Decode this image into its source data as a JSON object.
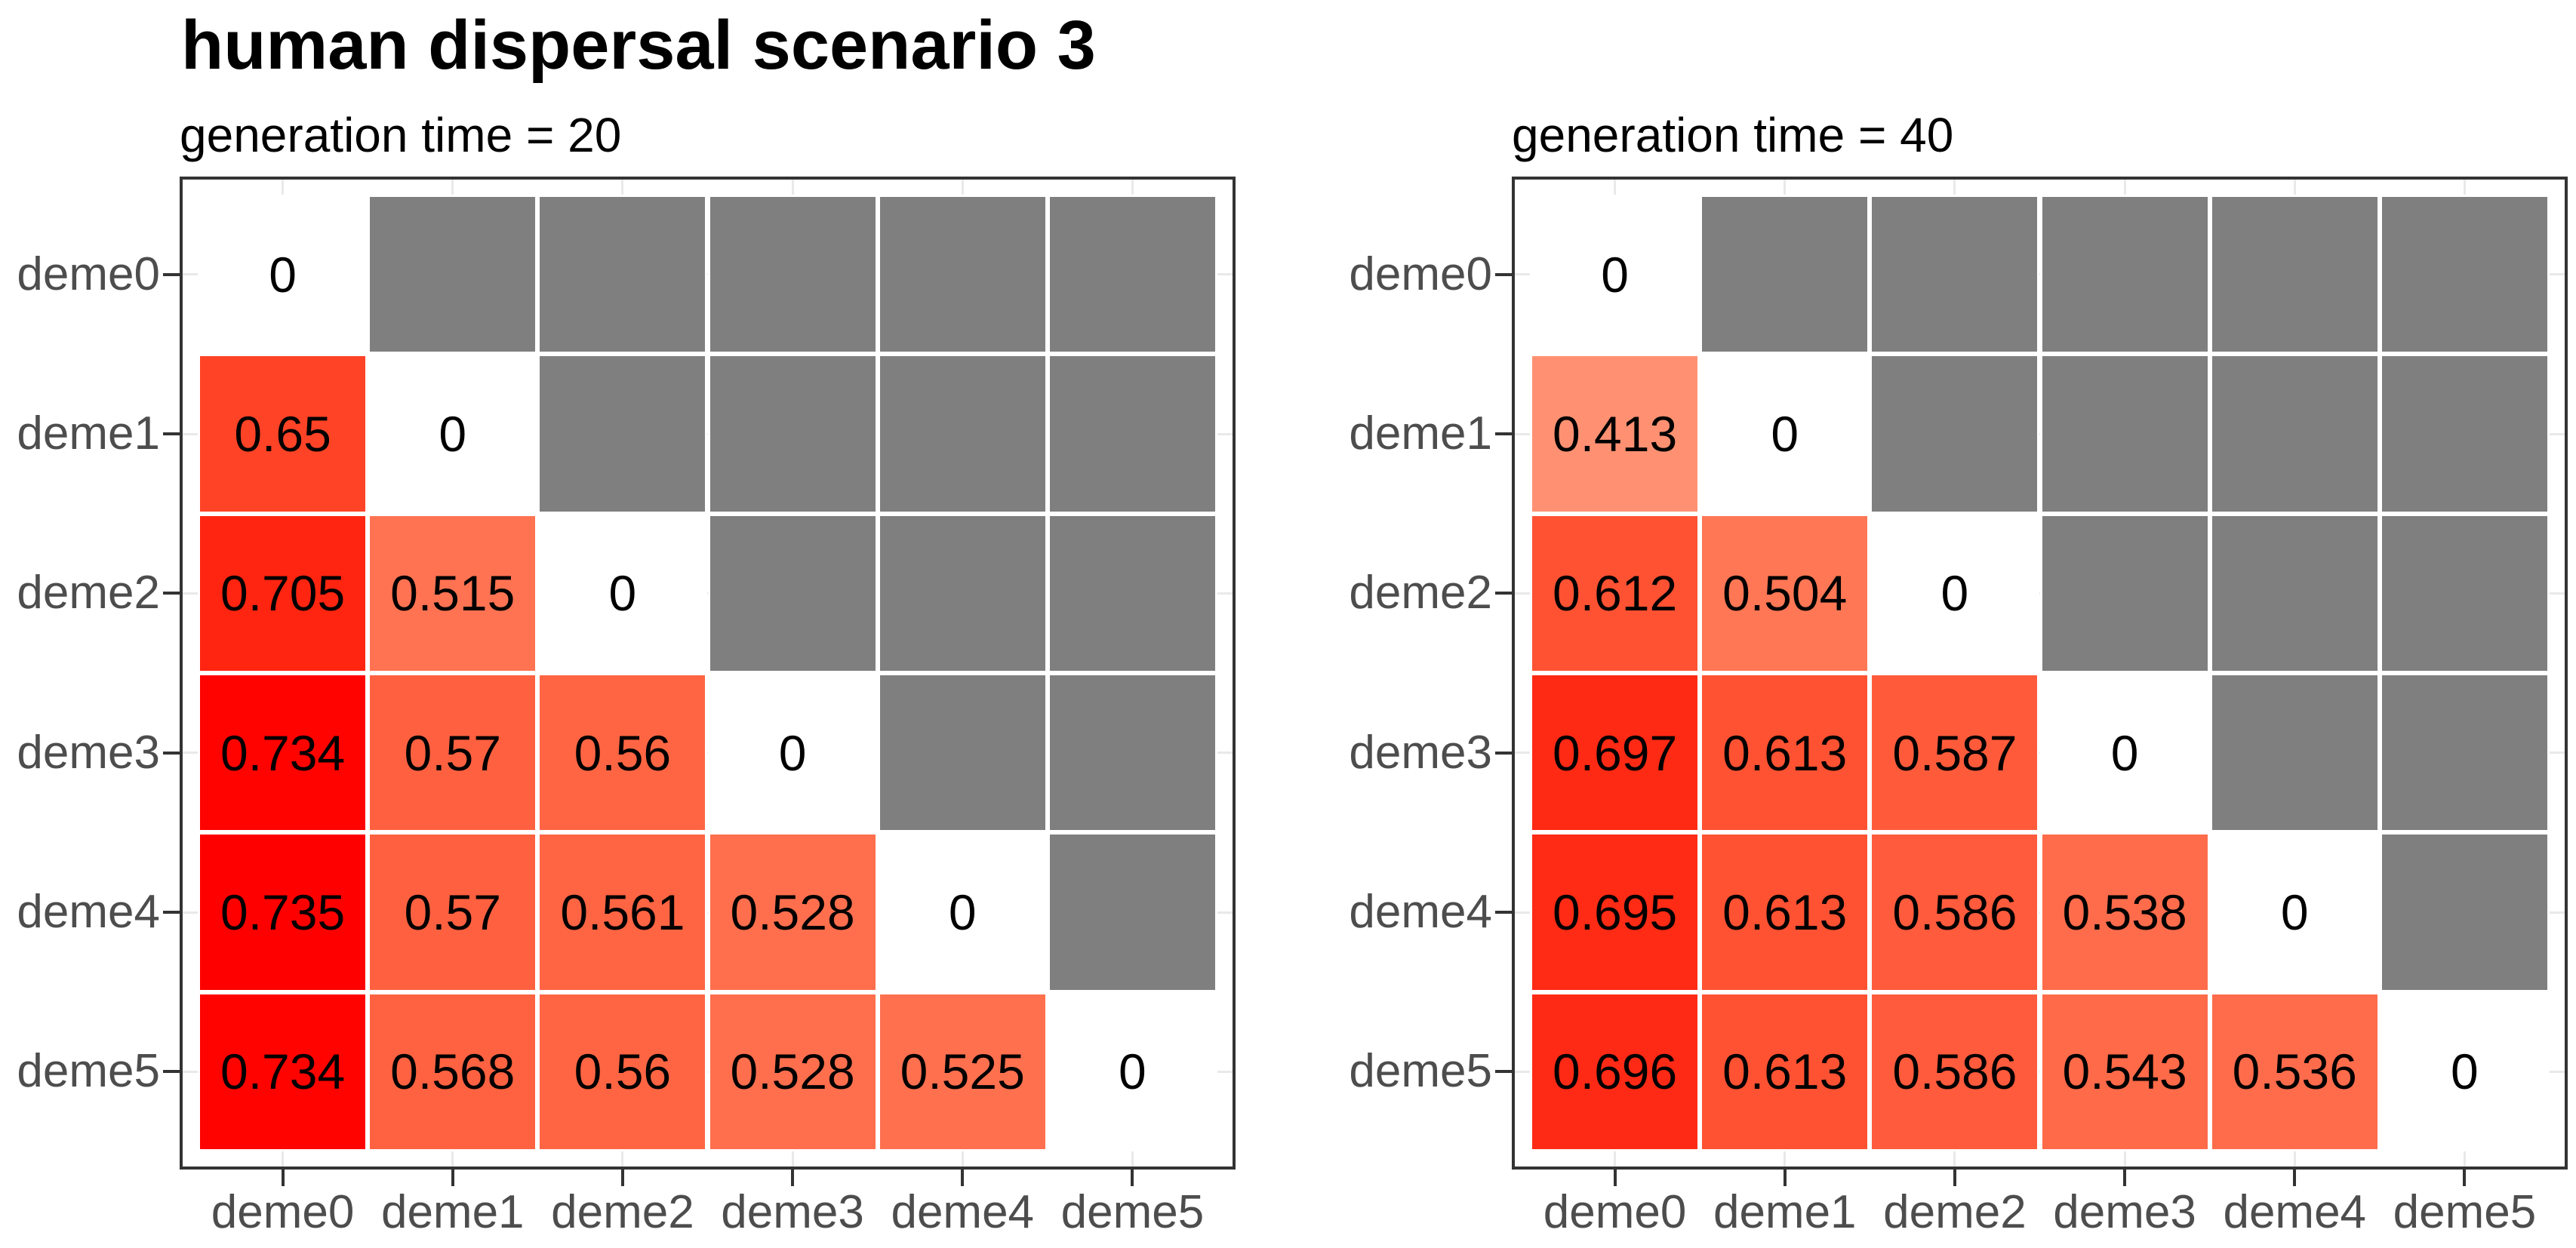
{
  "figure": {
    "background": "#FFFFFF"
  },
  "chart_data": {
    "type": "heatmap",
    "title": "human dispersal scenario 3",
    "legend": "none",
    "grid": "stubs-at-category-centers",
    "color_scale": {
      "low": "#FFFFFF",
      "high": "#FF0000",
      "na_color": "#7F7F7F",
      "domain": [
        0,
        0.735
      ]
    },
    "x_categories": [
      "deme0",
      "deme1",
      "deme2",
      "deme3",
      "deme4",
      "deme5"
    ],
    "y_categories": [
      "deme0",
      "deme1",
      "deme2",
      "deme3",
      "deme4",
      "deme5"
    ],
    "facets": [
      {
        "subtitle": "generation time = 20",
        "values": [
          [
            0,
            null,
            null,
            null,
            null,
            null
          ],
          [
            0.65,
            0,
            null,
            null,
            null,
            null
          ],
          [
            0.705,
            0.515,
            0,
            null,
            null,
            null
          ],
          [
            0.734,
            0.57,
            0.56,
            0,
            null,
            null
          ],
          [
            0.735,
            0.57,
            0.561,
            0.528,
            0,
            null
          ],
          [
            0.734,
            0.568,
            0.56,
            0.528,
            0.525,
            0
          ]
        ],
        "cell_colors": [
          [
            "#FFFFFF",
            "#7F7F7F",
            "#7F7F7F",
            "#7F7F7F",
            "#7F7F7F",
            "#7F7F7F"
          ],
          [
            "#FF4326",
            "#FFFFFF",
            "#7F7F7F",
            "#7F7F7F",
            "#7F7F7F",
            "#7F7F7F"
          ],
          [
            "#FF2510",
            "#FF7352",
            "#FFFFFF",
            "#7F7F7F",
            "#7F7F7F",
            "#7F7F7F"
          ],
          [
            "#FF0300",
            "#FF6140",
            "#FF6543",
            "#FFFFFF",
            "#7F7F7F",
            "#7F7F7F"
          ],
          [
            "#FF0000",
            "#FF6140",
            "#FF6443",
            "#FF6F4E",
            "#FFFFFF",
            "#7F7F7F"
          ],
          [
            "#FF0300",
            "#FF6241",
            "#FF6543",
            "#FF6F4E",
            "#FF704F",
            "#FFFFFF"
          ]
        ]
      },
      {
        "subtitle": "generation time = 40",
        "values": [
          [
            0,
            null,
            null,
            null,
            null,
            null
          ],
          [
            0.413,
            0,
            null,
            null,
            null,
            null
          ],
          [
            0.612,
            0.504,
            0,
            null,
            null,
            null
          ],
          [
            0.697,
            0.613,
            0.587,
            0,
            null,
            null
          ],
          [
            0.695,
            0.613,
            0.586,
            0.538,
            0,
            null
          ],
          [
            0.696,
            0.613,
            0.586,
            0.543,
            0.536,
            0
          ]
        ],
        "cell_colors": [
          [
            "#FFFFFF",
            "#7F7F7F",
            "#7F7F7F",
            "#7F7F7F",
            "#7F7F7F",
            "#7F7F7F"
          ],
          [
            "#FF9172",
            "#FFFFFF",
            "#7F7F7F",
            "#7F7F7F",
            "#7F7F7F",
            "#7F7F7F"
          ],
          [
            "#FF5232",
            "#FF7755",
            "#FFFFFF",
            "#7F7F7F",
            "#7F7F7F",
            "#7F7F7F"
          ],
          [
            "#FF2A14",
            "#FF5232",
            "#FF5B3B",
            "#FFFFFF",
            "#7F7F7F",
            "#7F7F7F"
          ],
          [
            "#FF2B15",
            "#FF5232",
            "#FF5B3C",
            "#FF6C4B",
            "#FFFFFF",
            "#7F7F7F"
          ],
          [
            "#FF2A15",
            "#FF5232",
            "#FF5B3C",
            "#FF6A49",
            "#FF6C4C",
            "#FFFFFF"
          ]
        ]
      }
    ],
    "styles": {
      "panel_border_color": "#333333",
      "panel_background": "#FFFFFF",
      "grid_color": "#E9E9E9",
      "tick_color": "#333333",
      "axis_text_color": "#4D4D4D",
      "cell_text_color": "#000000",
      "na_color": "#7F7F7F",
      "title_color": "#000000",
      "subtitle_color": "#000000"
    }
  }
}
